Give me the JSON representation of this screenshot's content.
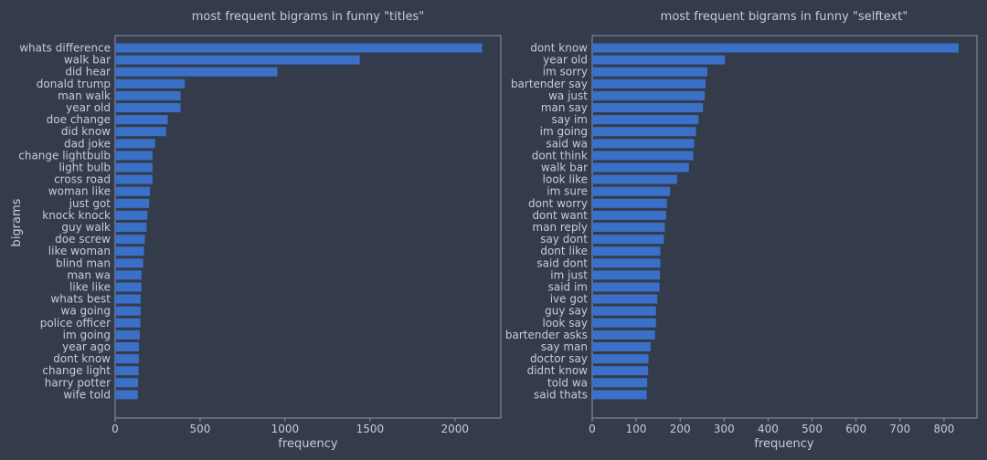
{
  "colors": {
    "background": "#343c4b",
    "bar": "#3a70c8",
    "axis": "#8c96a8",
    "text": "#c6ccd6"
  },
  "chart_data": [
    {
      "type": "bar",
      "orientation": "horizontal",
      "title": "most frequent bigrams in funny \"titles\"",
      "xlabel": "frequency",
      "ylabel": "bigrams",
      "xlim": [
        0,
        2270
      ],
      "xticks": [
        0,
        500,
        1000,
        1500,
        2000
      ],
      "grid": false,
      "categories": [
        "whats difference",
        "walk bar",
        "did hear",
        "donald trump",
        "man walk",
        "year old",
        "doe change",
        "did know",
        "dad joke",
        "change lightbulb",
        "light bulb",
        "cross road",
        "woman like",
        "just got",
        "knock knock",
        "guy walk",
        "doe screw",
        "like woman",
        "blind man",
        "man wa",
        "like like",
        "whats best",
        "wa going",
        "police officer",
        "im going",
        "year ago",
        "dont know",
        "change light",
        "harry potter",
        "wife told"
      ],
      "values": [
        2160,
        1440,
        955,
        410,
        385,
        385,
        310,
        300,
        235,
        220,
        220,
        220,
        205,
        200,
        190,
        185,
        175,
        170,
        165,
        155,
        155,
        150,
        150,
        148,
        145,
        140,
        140,
        138,
        135,
        133
      ]
    },
    {
      "type": "bar",
      "orientation": "horizontal",
      "title": "most frequent bigrams in funny \"selftext\"",
      "xlabel": "frequency",
      "ylabel": "",
      "xlim": [
        0,
        875
      ],
      "xticks": [
        0,
        100,
        200,
        300,
        400,
        500,
        600,
        700,
        800
      ],
      "grid": false,
      "categories": [
        "dont know",
        "year old",
        "im sorry",
        "bartender say",
        "wa just",
        "man say",
        "say im",
        "im going",
        "said wa",
        "dont think",
        "walk bar",
        "look like",
        "im sure",
        "dont worry",
        "dont want",
        "man reply",
        "say dont",
        "dont like",
        "said dont",
        "im just",
        "said im",
        "ive got",
        "guy say",
        "look say",
        "bartender asks",
        "say man",
        "doctor say",
        "didnt know",
        "told wa",
        "said thats"
      ],
      "values": [
        833,
        302,
        262,
        258,
        256,
        252,
        242,
        236,
        232,
        230,
        220,
        193,
        177,
        170,
        168,
        165,
        163,
        155,
        155,
        154,
        153,
        148,
        145,
        145,
        143,
        133,
        128,
        127,
        125,
        124
      ]
    }
  ]
}
